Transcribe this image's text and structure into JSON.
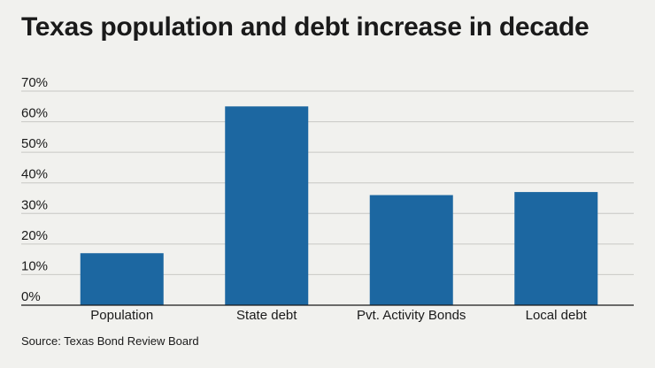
{
  "header": {
    "title": "Texas population and debt increase in decade"
  },
  "footer": {
    "source": "Source: Texas Bond Review Board"
  },
  "colors": {
    "bar": "#1c67a1",
    "grid": "#c8c8c4",
    "axis": "#1a1a1a",
    "background": "#f1f1ee"
  },
  "chart_data": {
    "type": "bar",
    "title": "Texas population and debt increase in decade",
    "xlabel": "",
    "ylabel": "",
    "categories": [
      "Population",
      "State debt",
      "Pvt. Activity Bonds",
      "Local debt"
    ],
    "values": [
      17,
      65,
      36,
      37
    ],
    "unit": "%",
    "ylim": [
      0,
      70
    ],
    "yticks": [
      0,
      10,
      20,
      30,
      40,
      50,
      60,
      70
    ],
    "ytick_labels": [
      "0%",
      "10%",
      "20%",
      "30%",
      "40%",
      "50%",
      "60%",
      "70%"
    ],
    "grid": true,
    "legend": "none"
  }
}
